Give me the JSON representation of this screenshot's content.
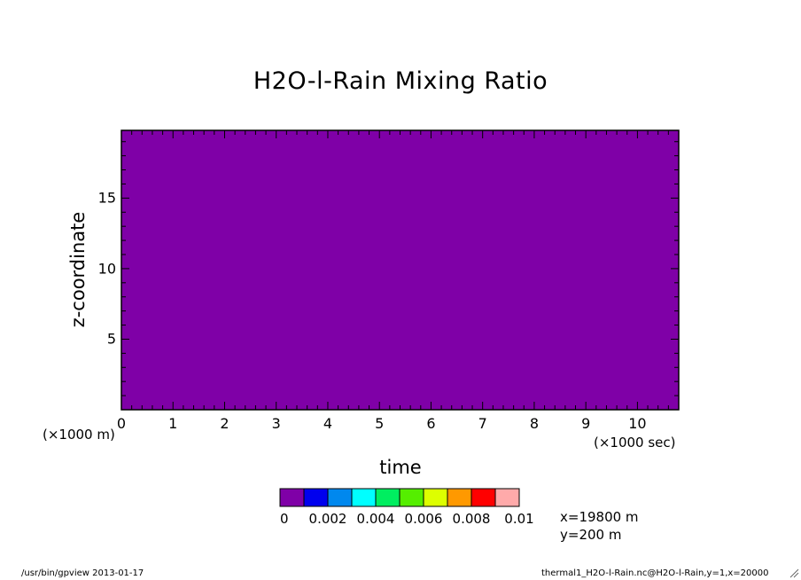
{
  "chart_data": {
    "type": "heatmap",
    "title": "H2O-l-Rain Mixing Ratio",
    "xlabel": "time",
    "ylabel": "z-coordinate",
    "x_unit_label": "(×1000 sec)",
    "y_unit_label": "(×1000 m)",
    "xlim": [
      0,
      10.8
    ],
    "ylim": [
      0,
      19.8
    ],
    "x_ticks": [
      "0",
      "1",
      "2",
      "3",
      "4",
      "5",
      "6",
      "7",
      "8",
      "9",
      "10"
    ],
    "y_ticks": [
      "5",
      "10",
      "15"
    ],
    "field_value": 0,
    "field_color": "#7f00a7",
    "colorbar": {
      "colors": [
        "#7f00a7",
        "#0000ee",
        "#0088ee",
        "#00ffff",
        "#00ee60",
        "#55ee00",
        "#ddff00",
        "#ff9900",
        "#ff0000",
        "#ffaaaa"
      ],
      "labels": [
        "0",
        "0.002",
        "0.004",
        "0.006",
        "0.008",
        "0.01"
      ]
    },
    "info": [
      "x=19800 m",
      "y=200 m"
    ]
  },
  "footer": {
    "left": "/usr/bin/gpview  2013-01-17",
    "right": "thermal1_H2O-l-Rain.nc@H2O-l-Rain,y=1,x=20000"
  },
  "grip_icon": "resize-grip-icon"
}
